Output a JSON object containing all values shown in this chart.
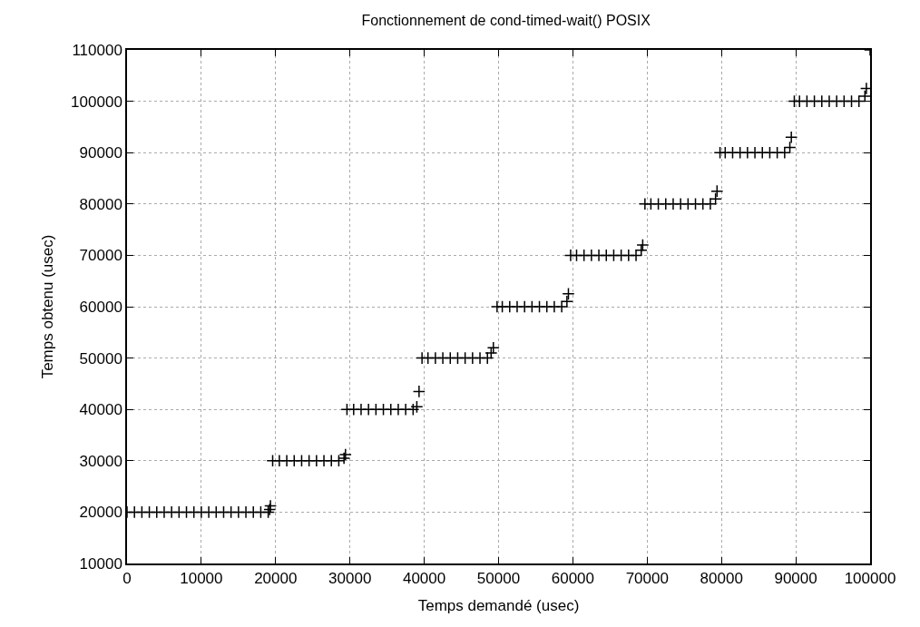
{
  "chart_data": {
    "type": "scatter",
    "title": "Fonctionnement de cond-timed-wait() POSIX",
    "xlabel": "Temps demandé (usec)",
    "ylabel": "Temps obtenu (usec)",
    "x": [
      0,
      1000,
      2000,
      3000,
      4000,
      5000,
      6000,
      7000,
      8000,
      9000,
      10000,
      11000,
      12000,
      13000,
      14000,
      15000,
      16000,
      17000,
      18000,
      19000,
      19200,
      19300,
      19600,
      20500,
      21500,
      22500,
      23500,
      24500,
      25500,
      26500,
      27500,
      28500,
      29200,
      29400,
      29600,
      30500,
      31500,
      32500,
      33500,
      34500,
      35500,
      36500,
      37500,
      38500,
      39000,
      39300,
      39700,
      40500,
      41500,
      42500,
      43500,
      44500,
      45500,
      46500,
      47500,
      48500,
      49000,
      49300,
      49800,
      50500,
      51500,
      52500,
      53500,
      54500,
      55500,
      56500,
      57500,
      58500,
      59200,
      59400,
      59700,
      60500,
      61500,
      62500,
      63500,
      64500,
      65500,
      66500,
      67500,
      68500,
      69200,
      69400,
      69700,
      70500,
      71500,
      72500,
      73500,
      74500,
      75500,
      76500,
      77500,
      78500,
      79200,
      79400,
      79800,
      80500,
      81500,
      82500,
      83500,
      84500,
      85500,
      86500,
      87500,
      88500,
      89200,
      89400,
      89800,
      90500,
      91500,
      92500,
      93500,
      94500,
      95500,
      96500,
      97500,
      98500,
      99300,
      99500,
      100000
    ],
    "values": [
      20000,
      20000,
      20000,
      20000,
      20000,
      20000,
      20000,
      20000,
      20000,
      20000,
      20000,
      20000,
      20000,
      20000,
      20000,
      20000,
      20000,
      20000,
      20000,
      20000,
      20500,
      21200,
      30000,
      30000,
      30000,
      30000,
      30000,
      30000,
      30000,
      30000,
      30000,
      30000,
      30500,
      31200,
      40000,
      40000,
      40000,
      40000,
      40000,
      40000,
      40000,
      40000,
      40000,
      40000,
      40500,
      43500,
      50000,
      50000,
      50000,
      50000,
      50000,
      50000,
      50000,
      50000,
      50000,
      50000,
      51000,
      52000,
      60000,
      60000,
      60000,
      60000,
      60000,
      60000,
      60000,
      60000,
      60000,
      60000,
      61000,
      62500,
      70000,
      70000,
      70000,
      70000,
      70000,
      70000,
      70000,
      70000,
      70000,
      70000,
      71000,
      72000,
      80000,
      80000,
      80000,
      80000,
      80000,
      80000,
      80000,
      80000,
      80000,
      80000,
      81000,
      82500,
      90000,
      90000,
      90000,
      90000,
      90000,
      90000,
      90000,
      90000,
      90000,
      90000,
      91000,
      93000,
      100000,
      100000,
      100000,
      100000,
      100000,
      100000,
      100000,
      100000,
      100000,
      100000,
      101000,
      102500,
      110000
    ],
    "color": "#000000",
    "marker": "cross",
    "grid": true,
    "xlim": [
      0,
      100000
    ],
    "xticks": [
      0,
      10000,
      20000,
      30000,
      40000,
      50000,
      60000,
      70000,
      80000,
      90000,
      100000
    ],
    "ylim": [
      10000,
      110000
    ],
    "yticks": [
      10000,
      20000,
      30000,
      40000,
      50000,
      60000,
      70000,
      80000,
      90000,
      100000,
      110000
    ]
  }
}
